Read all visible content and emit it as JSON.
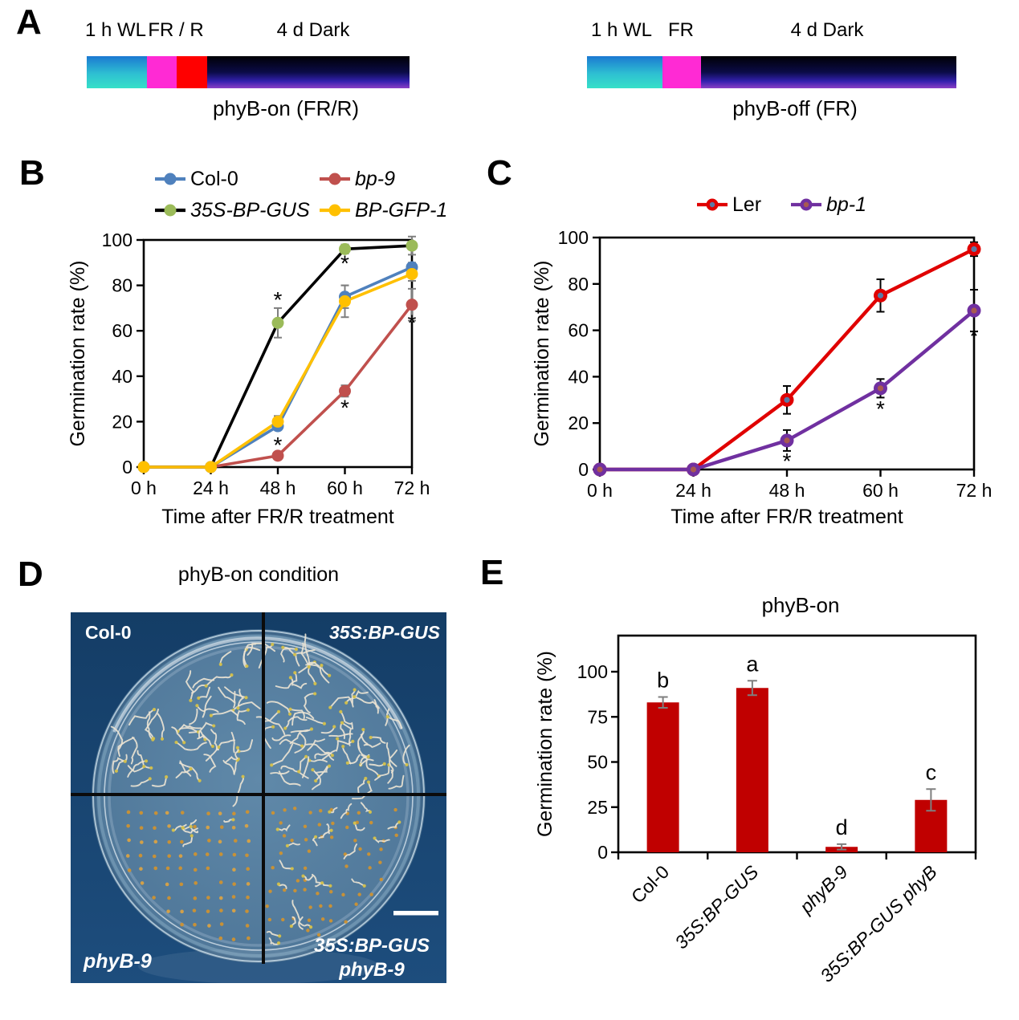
{
  "panel_a": {
    "label": "A",
    "left": {
      "phase_labels": [
        "1 h WL",
        "FR / R",
        "4 d Dark"
      ],
      "caption": "phyB-on (FR/R)",
      "segments": [
        {
          "name": "white-light",
          "gradient": [
            "#1b79d2",
            "#2ec0d2",
            "#36e0c8"
          ]
        },
        {
          "name": "far-red",
          "color": "#ff2ad4"
        },
        {
          "name": "red",
          "color": "#ff0000"
        },
        {
          "name": "dark",
          "gradient": [
            "#000005",
            "#0b0b47",
            "#3320ae",
            "#8b3fc6"
          ]
        }
      ]
    },
    "right": {
      "phase_labels": [
        "1 h WL",
        "FR",
        "4 d Dark"
      ],
      "caption": "phyB-off (FR)",
      "segments": [
        {
          "name": "white-light",
          "gradient": [
            "#1b79d2",
            "#2ec0d2",
            "#36e0c8"
          ]
        },
        {
          "name": "far-red",
          "color": "#ff2ad4"
        },
        {
          "name": "dark",
          "gradient": [
            "#000005",
            "#0b0b47",
            "#3320ae",
            "#8b3fc6"
          ]
        }
      ]
    }
  },
  "chart_data": [
    {
      "panel": "B",
      "type": "line",
      "title": "",
      "xlabel": "Time after FR/R treatment",
      "ylabel": "Germination rate (%)",
      "categories": [
        "0 h",
        "24 h",
        "48 h",
        "60 h",
        "72 h"
      ],
      "ylim": [
        0,
        100
      ],
      "yticks": [
        0,
        20,
        40,
        60,
        80,
        100
      ],
      "legend_position": "top",
      "error_color": "#7f7f7f",
      "sig_marker": "*",
      "series": [
        {
          "name": "Col-0",
          "italic": false,
          "line_color": "#4f81bd",
          "marker_color": "#4f81bd",
          "values": [
            0,
            0,
            18,
            75,
            88
          ],
          "errors": [
            0,
            0,
            1.5,
            5,
            2
          ]
        },
        {
          "name": "bp-9",
          "italic": true,
          "line_color": "#c0504d",
          "marker_color": "#c0504d",
          "values": [
            0,
            0,
            5,
            33.5,
            71.5
          ],
          "errors": [
            0,
            0,
            1,
            2.5,
            7
          ]
        },
        {
          "name": "35S-BP-GUS",
          "italic": true,
          "line_color": "#000000",
          "marker_color": "#9bbb59",
          "values": [
            0,
            0,
            63.5,
            96,
            97.5
          ],
          "errors": [
            0,
            0,
            6.5,
            2,
            4
          ]
        },
        {
          "name": "BP-GFP-1",
          "italic": true,
          "line_color": "#ffc000",
          "marker_color": "#ffc000",
          "values": [
            0,
            0,
            20,
            73,
            85
          ],
          "errors": [
            0,
            0,
            2.5,
            7,
            3
          ]
        }
      ],
      "asterisks": [
        {
          "x": 2,
          "y": 73.5
        },
        {
          "x": 2,
          "y": 9.5
        },
        {
          "x": 3,
          "y": 89.5
        },
        {
          "x": 3,
          "y": 26
        },
        {
          "x": 4,
          "y": 63.5
        }
      ]
    },
    {
      "panel": "C",
      "type": "line",
      "title": "",
      "xlabel": "Time after FR/R treatment",
      "ylabel": "Germination rate (%)",
      "categories": [
        "0 h",
        "24 h",
        "48 h",
        "60 h",
        "72 h"
      ],
      "ylim": [
        0,
        100
      ],
      "yticks": [
        0,
        20,
        40,
        60,
        80,
        100
      ],
      "legend_position": "top",
      "error_color": "#000000",
      "sig_marker": "*",
      "series": [
        {
          "name": "Ler",
          "italic": false,
          "line_color": "#e00000",
          "marker_color": "#e00000",
          "marker_center": "#5a7aa6",
          "values": [
            0,
            0,
            30,
            75,
            95
          ],
          "errors": [
            0,
            0,
            6,
            7,
            3
          ]
        },
        {
          "name": "bp-1",
          "italic": true,
          "line_color": "#7030a0",
          "marker_color": "#7030a0",
          "marker_center": "#a85a50",
          "values": [
            0,
            0,
            12.5,
            35,
            68.5
          ],
          "errors": [
            0,
            0,
            4.5,
            4,
            9
          ]
        }
      ],
      "asterisks": [
        {
          "x": 2,
          "y": 3.5
        },
        {
          "x": 3,
          "y": 26
        },
        {
          "x": 4,
          "y": 57.5
        }
      ]
    },
    {
      "panel": "E",
      "type": "bar",
      "title": "phyB-on",
      "xlabel": "",
      "ylabel": "Germination rate (%)",
      "categories": [
        "Col-0",
        "35S:BP-GUS",
        "phyB-9",
        "35S:BP-GUS phyB"
      ],
      "categories_italic": [
        false,
        true,
        true,
        true
      ],
      "values": [
        83,
        91,
        3,
        29
      ],
      "errors": [
        3,
        4,
        1.5,
        6
      ],
      "sig_letters": [
        "b",
        "a",
        "d",
        "c"
      ],
      "bar_color": "#c00000",
      "error_color": "#7f7f7f",
      "ylim": [
        0,
        120
      ],
      "yticks": [
        0,
        25,
        50,
        75,
        100
      ]
    }
  ],
  "panel_d": {
    "label": "D",
    "title": "phyB-on condition",
    "labels": {
      "top_left": "Col-0",
      "top_right": "35S:BP-GUS",
      "bottom_left": "phyB-9",
      "bottom_right": [
        "35S:BP-GUS",
        "phyB-9"
      ]
    },
    "colors": {
      "background": "#17436e",
      "dish": "#4e7698",
      "agar_center": "#6089a9",
      "seed": "#cd9232",
      "seedling": "#eae3d2",
      "seed_head": "#d2bf4a"
    }
  }
}
